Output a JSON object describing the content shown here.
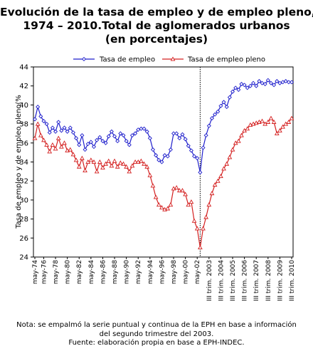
{
  "chart_data": {
    "type": "line",
    "title_lines": [
      "Evolución de la tasa de empleo y de empleo pleno,",
      "1974 – 2010.Total de aglomerados urbanos",
      "(en porcentajes)"
    ],
    "ylabel": "Tasa de empleo y de empleo pleno(%",
    "xlabel": "",
    "ylim": [
      24,
      44
    ],
    "yticks": [
      24,
      26,
      28,
      30,
      32,
      34,
      36,
      38,
      40,
      42,
      44
    ],
    "grid": false,
    "legend_position": "top",
    "vertical_marker": {
      "at_index": 56,
      "style": "dotted"
    },
    "tick_labels": [
      {
        "i": 0,
        "label": "may-74"
      },
      {
        "i": 3,
        "label": "may-76"
      },
      {
        "i": 7,
        "label": "may-78"
      },
      {
        "i": 11,
        "label": "may-80"
      },
      {
        "i": 15,
        "label": "may-82"
      },
      {
        "i": 19,
        "label": "may-84"
      },
      {
        "i": 23,
        "label": "may-86"
      },
      {
        "i": 27,
        "label": "may-88"
      },
      {
        "i": 31,
        "label": "may-90"
      },
      {
        "i": 35,
        "label": "may-92"
      },
      {
        "i": 39,
        "label": "may-94"
      },
      {
        "i": 43,
        "label": "may-96"
      },
      {
        "i": 47,
        "label": "may-98"
      },
      {
        "i": 51,
        "label": "may-00"
      },
      {
        "i": 55,
        "label": "may-02"
      },
      {
        "i": 59,
        "label": "III trim. 2003"
      },
      {
        "i": 63,
        "label": "III trim. 2004"
      },
      {
        "i": 67,
        "label": "III trim. 2005"
      },
      {
        "i": 71,
        "label": "III trim. 2006"
      },
      {
        "i": 75,
        "label": "III trim. 2007"
      },
      {
        "i": 79,
        "label": "III trim. 2008"
      },
      {
        "i": 83,
        "label": "III trim. 2009"
      },
      {
        "i": 87,
        "label": "III trim. 2010"
      }
    ],
    "series": [
      {
        "name": "Tasa de empleo",
        "color": "#1f1fcc",
        "marker": "diamond",
        "values": [
          38.5,
          39.8,
          38.8,
          38.3,
          38.0,
          37.1,
          37.6,
          37.2,
          38.2,
          37.3,
          37.6,
          37.2,
          37.6,
          37.1,
          36.5,
          35.8,
          36.8,
          35.3,
          35.9,
          36.1,
          35.6,
          36.3,
          36.6,
          36.2,
          36.0,
          36.7,
          37.2,
          36.7,
          36.2,
          37.0,
          36.8,
          36.2,
          35.8,
          36.8,
          37.0,
          37.4,
          37.5,
          37.5,
          37.2,
          36.5,
          35.3,
          34.7,
          34.2,
          34.0,
          34.7,
          34.6,
          35.3,
          37.0,
          37.0,
          36.5,
          36.9,
          36.4,
          35.7,
          35.2,
          34.6,
          34.4,
          32.9,
          35.5,
          36.8,
          37.8,
          38.6,
          39.0,
          39.3,
          39.9,
          40.3,
          39.8,
          40.8,
          41.4,
          41.8,
          41.6,
          42.2,
          42.1,
          41.8,
          42.0,
          42.3,
          42.0,
          42.5,
          42.3,
          42.2,
          42.6,
          42.3,
          42.1,
          42.5,
          42.3,
          42.4,
          42.5,
          42.4,
          42.4
        ],
        "marker_every": 1
      },
      {
        "name": "Tasa de empleo pleno",
        "color": "#d42020",
        "marker": "triangle",
        "values": [
          36.5,
          38.0,
          36.8,
          36.3,
          35.8,
          35.1,
          35.8,
          35.4,
          36.5,
          35.6,
          36.0,
          35.2,
          35.3,
          34.8,
          34.2,
          33.5,
          34.4,
          33.1,
          34.0,
          34.2,
          34.0,
          33.0,
          34.0,
          33.4,
          33.8,
          34.1,
          33.6,
          34.1,
          33.5,
          33.9,
          33.8,
          33.5,
          33.0,
          33.6,
          34.0,
          34.0,
          34.1,
          33.8,
          33.5,
          32.6,
          31.5,
          30.3,
          29.5,
          29.2,
          29.0,
          29.1,
          29.5,
          31.2,
          31.3,
          31.0,
          31.0,
          30.6,
          29.5,
          29.8,
          27.8,
          27.0,
          25.0,
          27.0,
          28.2,
          29.5,
          30.7,
          31.6,
          32.0,
          32.5,
          33.3,
          33.8,
          34.5,
          35.3,
          36.0,
          36.2,
          36.8,
          37.3,
          37.5,
          37.9,
          38.0,
          38.1,
          38.2,
          38.3,
          38.0,
          38.2,
          38.6,
          38.2,
          37.0,
          37.3,
          37.7,
          38.0,
          38.2,
          38.6
        ],
        "marker_every": 1
      }
    ],
    "notes": [
      "Nota: se empalmó la serie puntual y continua de la EPH en base a información",
      "del segundo  trimestre del 2003.",
      "Fuente: elaboración propia en base a EPH-INDEC."
    ]
  }
}
